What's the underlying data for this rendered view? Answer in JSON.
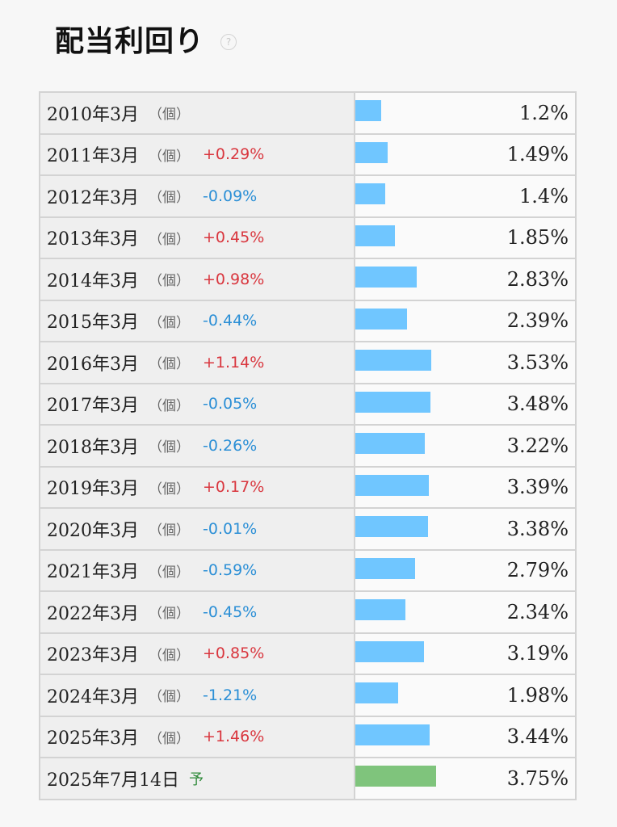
{
  "header": {
    "title": "配当利回り",
    "help_icon": "?"
  },
  "colors": {
    "bar": "#70c6ff",
    "forecast_bar": "#7fc47c",
    "positive": "#d9363e",
    "negative": "#2b8fd6"
  },
  "rows": [
    {
      "date": "2010年3月",
      "unit": "（個）",
      "change": "",
      "value": "1.2%",
      "num": 1.2
    },
    {
      "date": "2011年3月",
      "unit": "（個）",
      "change": "+0.29%",
      "value": "1.49%",
      "num": 1.49
    },
    {
      "date": "2012年3月",
      "unit": "（個）",
      "change": "-0.09%",
      "value": "1.4%",
      "num": 1.4
    },
    {
      "date": "2013年3月",
      "unit": "（個）",
      "change": "+0.45%",
      "value": "1.85%",
      "num": 1.85
    },
    {
      "date": "2014年3月",
      "unit": "（個）",
      "change": "+0.98%",
      "value": "2.83%",
      "num": 2.83
    },
    {
      "date": "2015年3月",
      "unit": "（個）",
      "change": "-0.44%",
      "value": "2.39%",
      "num": 2.39
    },
    {
      "date": "2016年3月",
      "unit": "（個）",
      "change": "+1.14%",
      "value": "3.53%",
      "num": 3.53
    },
    {
      "date": "2017年3月",
      "unit": "（個）",
      "change": "-0.05%",
      "value": "3.48%",
      "num": 3.48
    },
    {
      "date": "2018年3月",
      "unit": "（個）",
      "change": "-0.26%",
      "value": "3.22%",
      "num": 3.22
    },
    {
      "date": "2019年3月",
      "unit": "（個）",
      "change": "+0.17%",
      "value": "3.39%",
      "num": 3.39
    },
    {
      "date": "2020年3月",
      "unit": "（個）",
      "change": "-0.01%",
      "value": "3.38%",
      "num": 3.38
    },
    {
      "date": "2021年3月",
      "unit": "（個）",
      "change": "-0.59%",
      "value": "2.79%",
      "num": 2.79
    },
    {
      "date": "2022年3月",
      "unit": "（個）",
      "change": "-0.45%",
      "value": "2.34%",
      "num": 2.34
    },
    {
      "date": "2023年3月",
      "unit": "（個）",
      "change": "+0.85%",
      "value": "3.19%",
      "num": 3.19
    },
    {
      "date": "2024年3月",
      "unit": "（個）",
      "change": "-1.21%",
      "value": "1.98%",
      "num": 1.98
    },
    {
      "date": "2025年3月",
      "unit": "（個）",
      "change": "+1.46%",
      "value": "3.44%",
      "num": 3.44
    },
    {
      "date": "2025年7月14日",
      "unit": "",
      "forecast": "予",
      "change": "",
      "value": "3.75%",
      "num": 3.75
    }
  ]
}
